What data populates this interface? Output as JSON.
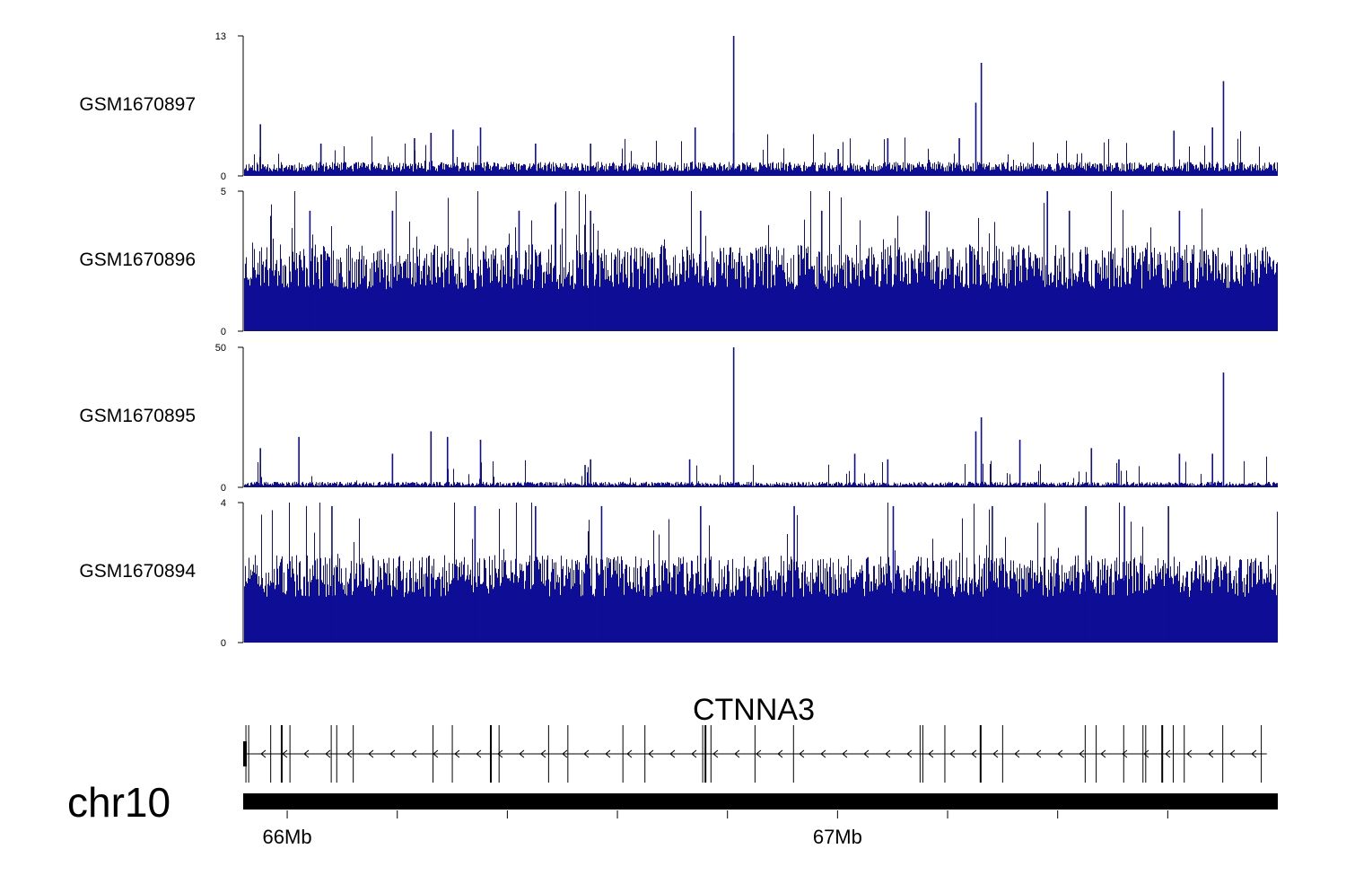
{
  "colors": {
    "signal": "#0d0d96",
    "axis": "#000000",
    "text": "#000000"
  },
  "chromosome": "chr10",
  "gene_name": "CTNNA3",
  "chart_data": {
    "type": "bar",
    "title": "",
    "x_unit": "Mb",
    "xlim": [
      65.92,
      67.8
    ],
    "x_ticks": [
      {
        "value": 66.0,
        "label": "66Mb"
      },
      {
        "value": 66.2,
        "label": ""
      },
      {
        "value": 66.4,
        "label": ""
      },
      {
        "value": 66.6,
        "label": ""
      },
      {
        "value": 66.8,
        "label": ""
      },
      {
        "value": 67.0,
        "label": "67Mb"
      },
      {
        "value": 67.2,
        "label": ""
      },
      {
        "value": 67.4,
        "label": ""
      },
      {
        "value": 67.6,
        "label": ""
      }
    ],
    "series": [
      {
        "name": "GSM1670897",
        "ylim": [
          0,
          13
        ],
        "y_tick_labels": [
          "13",
          "0"
        ],
        "baseline": 0.4,
        "noise": 0.9,
        "spike_rate": 0.04,
        "spike_max": 3.0,
        "seed": 11,
        "peaks": [
          [
            65.95,
            2.5
          ],
          [
            65.95,
            4.8
          ],
          [
            66.06,
            3.0
          ],
          [
            66.23,
            3.5
          ],
          [
            66.26,
            4.0
          ],
          [
            66.3,
            4.3
          ],
          [
            66.35,
            4.5
          ],
          [
            66.45,
            3.0
          ],
          [
            66.55,
            3.0
          ],
          [
            66.74,
            4.5
          ],
          [
            66.81,
            4.0
          ],
          [
            66.81,
            13.0
          ],
          [
            67.0,
            2.5
          ],
          [
            67.09,
            3.5
          ],
          [
            67.22,
            3.5
          ],
          [
            67.25,
            6.8
          ],
          [
            67.26,
            10.5
          ],
          [
            67.61,
            4.2
          ],
          [
            67.68,
            4.5
          ],
          [
            67.7,
            8.8
          ]
        ]
      },
      {
        "name": "GSM1670896",
        "ylim": [
          0,
          5
        ],
        "y_tick_labels": [
          "5",
          "0"
        ],
        "baseline": 1.5,
        "noise": 1.6,
        "spike_rate": 0.06,
        "spike_max": 3.0,
        "seed": 23,
        "peaks": [
          [
            66.04,
            4.3
          ],
          [
            66.19,
            4.3
          ],
          [
            66.42,
            4.3
          ],
          [
            66.55,
            4.3
          ],
          [
            66.75,
            4.3
          ],
          [
            66.97,
            4.3
          ],
          [
            67.16,
            4.3
          ],
          [
            67.38,
            5.0
          ],
          [
            67.42,
            4.3
          ],
          [
            67.62,
            4.3
          ]
        ]
      },
      {
        "name": "GSM1670895",
        "ylim": [
          0,
          50
        ],
        "y_tick_labels": [
          "50",
          "0"
        ],
        "baseline": 0.5,
        "noise": 1.5,
        "spike_rate": 0.04,
        "spike_max": 9.0,
        "seed": 37,
        "peaks": [
          [
            65.95,
            8
          ],
          [
            65.95,
            14
          ],
          [
            66.02,
            18
          ],
          [
            66.19,
            12
          ],
          [
            66.26,
            20
          ],
          [
            66.29,
            18
          ],
          [
            66.35,
            17
          ],
          [
            66.54,
            8
          ],
          [
            66.55,
            10
          ],
          [
            66.73,
            10
          ],
          [
            66.81,
            50
          ],
          [
            67.03,
            12
          ],
          [
            67.09,
            10
          ],
          [
            67.25,
            20
          ],
          [
            67.26,
            25
          ],
          [
            67.33,
            17
          ],
          [
            67.46,
            14
          ],
          [
            67.51,
            10
          ],
          [
            67.62,
            12
          ],
          [
            67.68,
            12
          ],
          [
            67.7,
            41
          ]
        ]
      },
      {
        "name": "GSM1670894",
        "ylim": [
          0,
          4
        ],
        "y_tick_labels": [
          "4",
          "0"
        ],
        "baseline": 1.3,
        "noise": 1.2,
        "spike_rate": 0.07,
        "spike_max": 2.4,
        "seed": 51,
        "peaks": [
          [
            66.08,
            3.9
          ],
          [
            66.34,
            3.9
          ],
          [
            66.45,
            3.9
          ],
          [
            66.57,
            3.9
          ],
          [
            66.75,
            3.9
          ],
          [
            66.92,
            3.9
          ],
          [
            67.1,
            3.9
          ],
          [
            67.28,
            3.9
          ],
          [
            67.45,
            3.9
          ],
          [
            67.52,
            3.9
          ],
          [
            67.6,
            3.9
          ]
        ]
      }
    ],
    "gene": {
      "name": "CTNNA3",
      "strand": "-",
      "start": 65.92,
      "end": 67.78,
      "exons": [
        65.925,
        65.93,
        65.97,
        65.99,
        66.005,
        66.08,
        66.09,
        66.12,
        66.265,
        66.3,
        66.37,
        66.385,
        66.475,
        66.51,
        66.61,
        66.65,
        66.755,
        66.76,
        66.77,
        66.85,
        66.92,
        67.15,
        67.155,
        67.195,
        67.26,
        67.3,
        67.45,
        67.47,
        67.52,
        67.555,
        67.56,
        67.59,
        67.61,
        67.63,
        67.7,
        67.77
      ]
    }
  }
}
